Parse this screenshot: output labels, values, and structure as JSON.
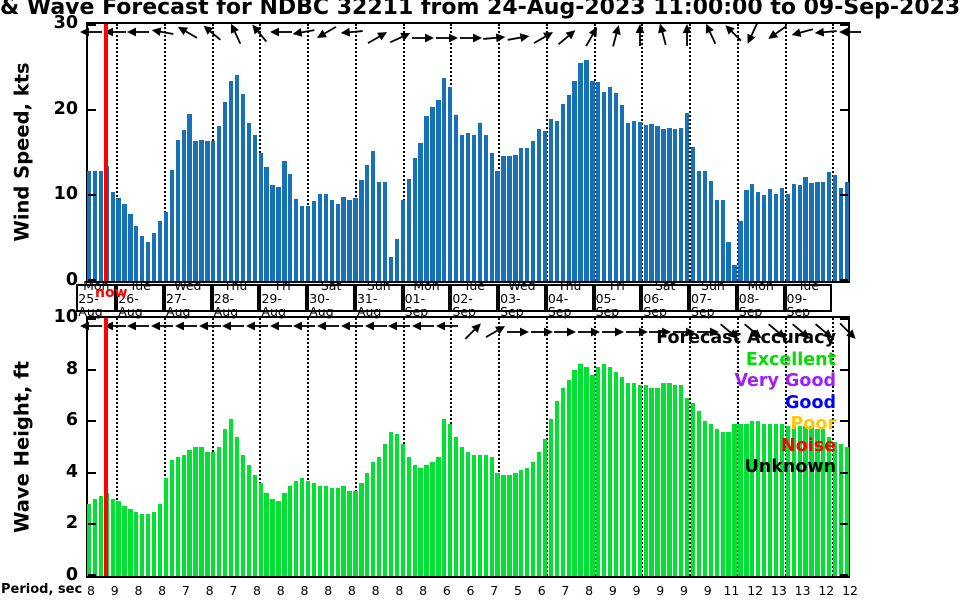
{
  "title": "& Wave Forecast for NDBC 32211 from 24-Aug-2023 11:00:00 to 09-Sep-2023",
  "now_label": "now",
  "colors": {
    "wind_bar": "#1771b6",
    "wave_bar": "#00e132",
    "now_line": "#ff0000",
    "axis": "#000000"
  },
  "legend": {
    "title": "Forecast Accuracy",
    "items": [
      {
        "label": "Excellent",
        "color": "#00dd00"
      },
      {
        "label": "Very Good",
        "color": "#a020f0"
      },
      {
        "label": "Good",
        "color": "#0000ff"
      },
      {
        "label": "Poor",
        "color": "#ffc800"
      },
      {
        "label": "Noise",
        "color": "#ff0000"
      },
      {
        "label": "Unknown",
        "color": "#000000"
      }
    ]
  },
  "date_axis": {
    "days": [
      {
        "weekday": "Mon",
        "date": "25-Aug"
      },
      {
        "weekday": "Tue",
        "date": "26-Aug"
      },
      {
        "weekday": "Wed",
        "date": "27-Aug"
      },
      {
        "weekday": "Thu",
        "date": "28-Aug"
      },
      {
        "weekday": "Fri",
        "date": "29-Aug"
      },
      {
        "weekday": "Sat",
        "date": "30-Aug"
      },
      {
        "weekday": "Sun",
        "date": "31-Aug"
      },
      {
        "weekday": "Mon",
        "date": "01-Sep"
      },
      {
        "weekday": "Tue",
        "date": "02-Sep"
      },
      {
        "weekday": "Wed",
        "date": "03-Sep"
      },
      {
        "weekday": "Thu",
        "date": "04-Sep"
      },
      {
        "weekday": "Fri",
        "date": "05-Sep"
      },
      {
        "weekday": "Sat",
        "date": "06-Sep"
      },
      {
        "weekday": "Sun",
        "date": "07-Sep"
      },
      {
        "weekday": "Mon",
        "date": "08-Sep"
      },
      {
        "weekday": "Tue",
        "date": "09-Sep"
      }
    ]
  },
  "period_row": {
    "label": "Period, sec",
    "values": [
      8,
      9,
      8,
      8,
      7,
      8,
      7,
      8,
      8,
      8,
      8,
      8,
      8,
      8,
      8,
      6,
      6,
      7,
      5,
      6,
      7,
      8,
      9,
      9,
      9,
      9,
      9,
      11,
      12,
      13,
      13,
      12,
      12
    ]
  },
  "chart_data": [
    {
      "id": "wind",
      "type": "bar",
      "ylabel": "Wind Speed, kts",
      "ylim": [
        0,
        30
      ],
      "yticks": [
        0,
        10,
        20,
        30
      ],
      "x_interval_hours": 3,
      "bar_color": "#1771b6",
      "values": [
        12.8,
        12.8,
        12.9,
        13.4,
        10.4,
        9.7,
        9.0,
        7.8,
        6.4,
        5.3,
        4.5,
        5.6,
        7.0,
        8.0,
        13.0,
        16.5,
        17.6,
        19.5,
        16.4,
        16.5,
        16.3,
        16.4,
        18.1,
        20.9,
        23.3,
        24.0,
        21.8,
        18.5,
        17.0,
        14.9,
        13.3,
        11.2,
        11.0,
        14.0,
        12.5,
        9.6,
        8.7,
        8.8,
        9.3,
        10.1,
        10.2,
        9.5,
        9.0,
        9.8,
        9.5,
        9.7,
        11.8,
        13.6,
        15.2,
        11.6,
        11.6,
        2.8,
        4.9,
        9.4,
        11.9,
        14.4,
        16.1,
        19.3,
        20.3,
        21.1,
        23.7,
        22.6,
        19.4,
        17.0,
        17.3,
        17.0,
        18.4,
        17.1,
        14.9,
        12.9,
        14.6,
        14.6,
        14.7,
        15.5,
        15.5,
        16.3,
        17.8,
        17.5,
        18.9,
        18.7,
        20.7,
        21.7,
        23.3,
        25.4,
        25.8,
        23.3,
        23.2,
        22.1,
        22.6,
        21.9,
        20.5,
        18.5,
        18.7,
        18.6,
        18.2,
        18.3,
        18.1,
        17.7,
        17.9,
        17.7,
        17.9,
        19.6,
        15.6,
        12.9,
        12.8,
        11.7,
        9.5,
        9.4,
        4.6,
        1.9,
        7.0,
        10.6,
        11.3,
        10.4,
        10.0,
        10.7,
        10.1,
        10.8,
        10.2,
        11.3,
        11.2,
        12.2,
        11.4,
        11.5,
        11.6,
        12.7,
        12.4,
        10.9,
        11.6
      ],
      "arrow_dirs_deg": [
        180,
        180,
        180,
        170,
        150,
        140,
        115,
        130,
        180,
        190,
        210,
        185,
        30,
        25,
        0,
        0,
        0,
        5,
        10,
        30,
        40,
        60,
        75,
        90,
        105,
        90,
        115,
        135,
        245,
        215,
        195,
        185,
        180
      ]
    },
    {
      "id": "wave",
      "type": "bar",
      "ylabel": "Wave Height, ft",
      "ylim": [
        0,
        10
      ],
      "yticks": [
        0,
        2,
        4,
        6,
        8,
        10
      ],
      "x_interval_hours": 3,
      "bar_color": "#00e132",
      "values": [
        2.8,
        3.0,
        3.1,
        3.2,
        3.0,
        2.9,
        2.7,
        2.6,
        2.5,
        2.4,
        2.4,
        2.5,
        2.8,
        3.8,
        4.5,
        4.6,
        4.7,
        4.9,
        5.0,
        5.0,
        4.8,
        4.8,
        5.0,
        5.7,
        6.1,
        5.4,
        4.7,
        4.3,
        3.9,
        3.6,
        3.2,
        3.0,
        2.9,
        3.2,
        3.5,
        3.7,
        3.8,
        3.7,
        3.6,
        3.5,
        3.5,
        3.4,
        3.4,
        3.5,
        3.3,
        3.3,
        3.6,
        4.0,
        4.4,
        4.6,
        5.1,
        5.6,
        5.5,
        5.1,
        4.6,
        4.3,
        4.2,
        4.3,
        4.4,
        4.6,
        6.1,
        5.9,
        5.4,
        5.0,
        4.8,
        4.7,
        4.7,
        4.7,
        4.6,
        4.0,
        3.9,
        3.9,
        4.0,
        4.1,
        4.2,
        4.4,
        4.8,
        5.3,
        6.1,
        6.8,
        7.3,
        7.6,
        8.0,
        8.2,
        8.1,
        7.8,
        8.1,
        8.2,
        8.1,
        7.9,
        7.7,
        7.5,
        7.5,
        7.4,
        7.4,
        7.3,
        7.3,
        7.5,
        7.5,
        7.4,
        7.4,
        6.9,
        6.7,
        6.4,
        6.0,
        5.9,
        5.7,
        5.6,
        5.6,
        5.9,
        5.9,
        5.9,
        6.0,
        6.0,
        5.9,
        5.9,
        5.9,
        5.9,
        5.8,
        5.8,
        5.8,
        5.8,
        5.8,
        5.7,
        5.7,
        5.4,
        5.2,
        5.1,
        5.0
      ],
      "arrow_dirs_deg": [
        180,
        180,
        180,
        180,
        180,
        180,
        180,
        180,
        180,
        180,
        180,
        180,
        180,
        180,
        180,
        180,
        45,
        30,
        0,
        0,
        0,
        0,
        0,
        0,
        0,
        0,
        0,
        -40,
        -40,
        -40,
        -40,
        -40,
        -45
      ]
    }
  ]
}
